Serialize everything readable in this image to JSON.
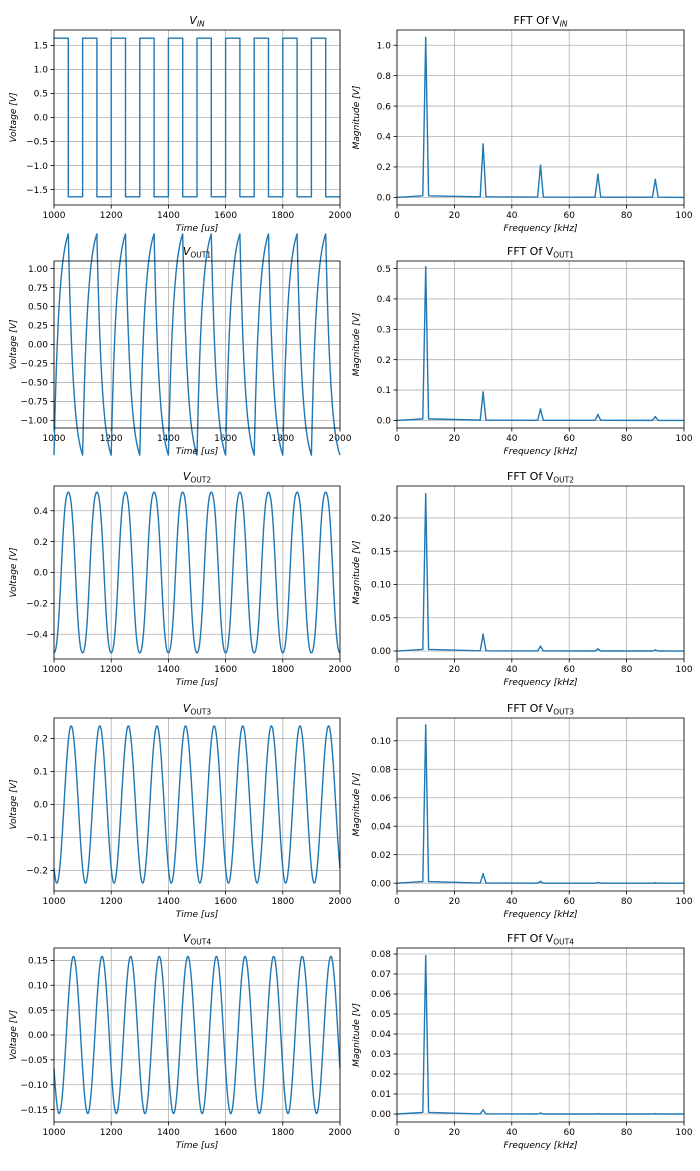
{
  "figure": {
    "title": ""
  },
  "chart_data": [
    {
      "type": "line",
      "name": "vin-time",
      "title": "V",
      "title_sub": "IN",
      "title_sub_italic": true,
      "xlabel": "Time [us]",
      "ylabel": "Voltage [V]",
      "xlim": [
        1000,
        2000
      ],
      "ylim": [
        -1.82,
        1.82
      ],
      "xticks": [
        1000,
        1200,
        1400,
        1600,
        1800,
        2000
      ],
      "xtick_labels": [
        "1000",
        "1200",
        "1400",
        "1600",
        "1800",
        "2000"
      ],
      "yticks": [
        -1.5,
        -1.0,
        -0.5,
        0.0,
        0.5,
        1.0,
        1.5
      ],
      "ytick_labels": [
        "−1.5",
        "−1.0",
        "−0.5",
        "0.0",
        "0.5",
        "1.0",
        "1.5"
      ],
      "grid": true,
      "color": "#1f77b4",
      "signal": {
        "kind": "square",
        "amplitude": 1.65,
        "period_us": 100,
        "high_start_us": 1000,
        "duty": 0.5
      }
    },
    {
      "type": "line",
      "name": "vin-fft",
      "title": "FFT Of V",
      "title_sub": "IN",
      "title_sub_italic": true,
      "xlabel": "Frequency [kHz]",
      "ylabel": "Magnitude [V]",
      "xlim": [
        0,
        100
      ],
      "ylim": [
        -0.05,
        1.1
      ],
      "xticks": [
        0,
        20,
        40,
        60,
        80,
        100
      ],
      "xtick_labels": [
        "0",
        "20",
        "40",
        "60",
        "80",
        "100"
      ],
      "yticks": [
        0.0,
        0.2,
        0.4,
        0.6,
        0.8,
        1.0
      ],
      "ytick_labels": [
        "0.0",
        "0.2",
        "0.4",
        "0.6",
        "0.8",
        "1.0"
      ],
      "grid": true,
      "color": "#1f77b4",
      "peaks": [
        {
          "x": 10,
          "y": 1.05
        },
        {
          "x": 30,
          "y": 0.35
        },
        {
          "x": 50,
          "y": 0.21
        },
        {
          "x": 70,
          "y": 0.15
        },
        {
          "x": 90,
          "y": 0.117
        }
      ]
    },
    {
      "type": "line",
      "name": "vout1-time",
      "title": "V",
      "title_sub": "OUT1",
      "title_sub_italic": false,
      "xlabel": "Time [us]",
      "ylabel": "Voltage [V]",
      "xlim": [
        1000,
        2000
      ],
      "ylim": [
        -1.1,
        1.1
      ],
      "xticks": [
        1000,
        1200,
        1400,
        1600,
        1800,
        2000
      ],
      "xtick_labels": [
        "1000",
        "1200",
        "1400",
        "1600",
        "1800",
        "2000"
      ],
      "yticks": [
        -1.0,
        -0.75,
        -0.5,
        -0.25,
        0.0,
        0.25,
        0.5,
        0.75,
        1.0
      ],
      "ytick_labels": [
        "−1.00",
        "−0.75",
        "−0.50",
        "−0.25",
        "0.00",
        "0.25",
        "0.50",
        "0.75",
        "1.00"
      ],
      "grid": true,
      "color": "#1f77b4",
      "signal": {
        "kind": "rc",
        "period_us": 100,
        "tau_us": 18,
        "vin": 1.65,
        "start_us": 1000,
        "start_level": -1.03
      }
    },
    {
      "type": "line",
      "name": "vout1-fft",
      "title": "FFT Of V",
      "title_sub": "OUT1",
      "title_sub_italic": false,
      "xlabel": "Frequency [kHz]",
      "ylabel": "Magnitude [V]",
      "xlim": [
        0,
        100
      ],
      "ylim": [
        -0.025,
        0.525
      ],
      "xticks": [
        0,
        20,
        40,
        60,
        80,
        100
      ],
      "xtick_labels": [
        "0",
        "20",
        "40",
        "60",
        "80",
        "100"
      ],
      "yticks": [
        0.0,
        0.1,
        0.2,
        0.3,
        0.4,
        0.5
      ],
      "ytick_labels": [
        "0.0",
        "0.1",
        "0.2",
        "0.3",
        "0.4",
        "0.5"
      ],
      "grid": true,
      "color": "#1f77b4",
      "peaks": [
        {
          "x": 10,
          "y": 0.505
        },
        {
          "x": 30,
          "y": 0.093
        },
        {
          "x": 50,
          "y": 0.037
        },
        {
          "x": 70,
          "y": 0.019
        },
        {
          "x": 90,
          "y": 0.012
        }
      ]
    },
    {
      "type": "line",
      "name": "vout2-time",
      "title": "V",
      "title_sub": "OUT2",
      "title_sub_italic": false,
      "xlabel": "Time [us]",
      "ylabel": "Voltage [V]",
      "xlim": [
        1000,
        2000
      ],
      "ylim": [
        -0.56,
        0.56
      ],
      "xticks": [
        1000,
        1200,
        1400,
        1600,
        1800,
        2000
      ],
      "xtick_labels": [
        "1000",
        "1200",
        "1400",
        "1600",
        "1800",
        "2000"
      ],
      "yticks": [
        -0.4,
        -0.2,
        0.0,
        0.2,
        0.4
      ],
      "ytick_labels": [
        "−0.4",
        "−0.2",
        "0.0",
        "0.2",
        "0.4"
      ],
      "grid": true,
      "color": "#1f77b4",
      "signal": {
        "kind": "sine",
        "amplitude": 0.52,
        "period_us": 100,
        "peak_us": 1050,
        "harmonic3": 0.045
      }
    },
    {
      "type": "line",
      "name": "vout2-fft",
      "title": "FFT Of V",
      "title_sub": "OUT2",
      "title_sub_italic": false,
      "xlabel": "Frequency [kHz]",
      "ylabel": "Magnitude [V]",
      "xlim": [
        0,
        100
      ],
      "ylim": [
        -0.012,
        0.248
      ],
      "xticks": [
        0,
        20,
        40,
        60,
        80,
        100
      ],
      "xtick_labels": [
        "0",
        "20",
        "40",
        "60",
        "80",
        "100"
      ],
      "yticks": [
        0.0,
        0.05,
        0.1,
        0.15,
        0.2
      ],
      "ytick_labels": [
        "0.00",
        "0.05",
        "0.10",
        "0.15",
        "0.20"
      ],
      "grid": true,
      "color": "#1f77b4",
      "peaks": [
        {
          "x": 10,
          "y": 0.236
        },
        {
          "x": 30,
          "y": 0.025
        },
        {
          "x": 50,
          "y": 0.007
        },
        {
          "x": 70,
          "y": 0.003
        },
        {
          "x": 90,
          "y": 0.0015
        }
      ]
    },
    {
      "type": "line",
      "name": "vout3-time",
      "title": "V",
      "title_sub": "OUT3",
      "title_sub_italic": false,
      "xlabel": "Time [us]",
      "ylabel": "Voltage [V]",
      "xlim": [
        1000,
        2000
      ],
      "ylim": [
        -0.262,
        0.262
      ],
      "xticks": [
        1000,
        1200,
        1400,
        1600,
        1800,
        2000
      ],
      "xtick_labels": [
        "1000",
        "1200",
        "1400",
        "1600",
        "1800",
        "2000"
      ],
      "yticks": [
        -0.2,
        -0.1,
        0.0,
        0.1,
        0.2
      ],
      "ytick_labels": [
        "−0.2",
        "−0.1",
        "0.0",
        "0.1",
        "0.2"
      ],
      "grid": true,
      "color": "#1f77b4",
      "signal": {
        "kind": "sine",
        "amplitude": 0.238,
        "period_us": 100,
        "peak_us": 1060,
        "harmonic3": 0.0
      }
    },
    {
      "type": "line",
      "name": "vout3-fft",
      "title": "FFT Of V",
      "title_sub": "OUT3",
      "title_sub_italic": false,
      "xlabel": "Frequency [kHz]",
      "ylabel": "Magnitude [V]",
      "xlim": [
        0,
        100
      ],
      "ylim": [
        -0.0055,
        0.116
      ],
      "xticks": [
        0,
        20,
        40,
        60,
        80,
        100
      ],
      "xtick_labels": [
        "0",
        "20",
        "40",
        "60",
        "80",
        "100"
      ],
      "yticks": [
        0.0,
        0.02,
        0.04,
        0.06,
        0.08,
        0.1
      ],
      "ytick_labels": [
        "0.00",
        "0.02",
        "0.04",
        "0.06",
        "0.08",
        "0.10"
      ],
      "grid": true,
      "color": "#1f77b4",
      "peaks": [
        {
          "x": 10,
          "y": 0.111
        },
        {
          "x": 30,
          "y": 0.0065
        },
        {
          "x": 50,
          "y": 0.0012
        },
        {
          "x": 70,
          "y": 0.0004
        },
        {
          "x": 90,
          "y": 0.0002
        }
      ]
    },
    {
      "type": "line",
      "name": "vout4-time",
      "title": "V",
      "title_sub": "OUT4",
      "title_sub_italic": false,
      "xlabel": "Time [us]",
      "ylabel": "Voltage [V]",
      "xlim": [
        1000,
        2000
      ],
      "ylim": [
        -0.175,
        0.175
      ],
      "xticks": [
        1000,
        1200,
        1400,
        1600,
        1800,
        2000
      ],
      "xtick_labels": [
        "1000",
        "1200",
        "1400",
        "1600",
        "1800",
        "2000"
      ],
      "yticks": [
        -0.15,
        -0.1,
        -0.05,
        0.0,
        0.05,
        0.1,
        0.15
      ],
      "ytick_labels": [
        "−0.15",
        "−0.10",
        "−0.05",
        "0.00",
        "0.05",
        "0.10",
        "0.15"
      ],
      "grid": true,
      "color": "#1f77b4",
      "signal": {
        "kind": "sine",
        "amplitude": 0.158,
        "period_us": 100,
        "peak_us": 1068,
        "harmonic3": 0.0
      }
    },
    {
      "type": "line",
      "name": "vout4-fft",
      "title": "FFT Of V",
      "title_sub": "OUT4",
      "title_sub_italic": false,
      "xlabel": "Frequency [kHz]",
      "ylabel": "Magnitude [V]",
      "xlim": [
        0,
        100
      ],
      "ylim": [
        -0.004,
        0.083
      ],
      "xticks": [
        0,
        20,
        40,
        60,
        80,
        100
      ],
      "xtick_labels": [
        "0",
        "20",
        "40",
        "60",
        "80",
        "100"
      ],
      "yticks": [
        0.0,
        0.01,
        0.02,
        0.03,
        0.04,
        0.05,
        0.06,
        0.07,
        0.08
      ],
      "ytick_labels": [
        "0.00",
        "0.01",
        "0.02",
        "0.03",
        "0.04",
        "0.05",
        "0.06",
        "0.07",
        "0.08"
      ],
      "grid": true,
      "color": "#1f77b4",
      "peaks": [
        {
          "x": 10,
          "y": 0.079
        },
        {
          "x": 30,
          "y": 0.002
        },
        {
          "x": 50,
          "y": 0.0004
        },
        {
          "x": 70,
          "y": 0.0001
        },
        {
          "x": 90,
          "y": 0.0001
        }
      ]
    }
  ]
}
